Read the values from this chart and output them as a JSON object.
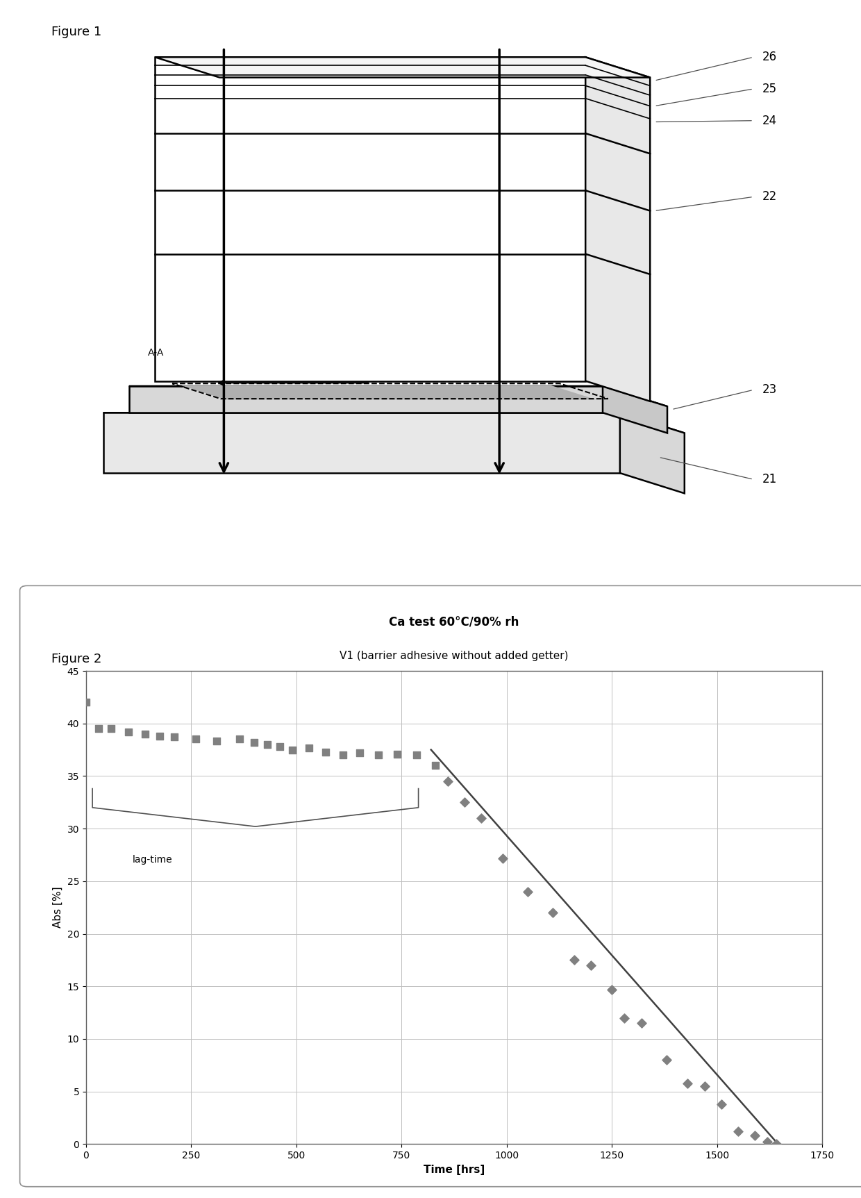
{
  "fig1_label": "Figure 1",
  "fig2_label": "Figure 2",
  "labels": {
    "21": "21",
    "22": "22",
    "23": "23",
    "24": "24",
    "25": "25",
    "26": "26",
    "AA": "A-A"
  },
  "plot_title1": "Ca test 60°C/90% rh",
  "plot_title2": "V1 (barrier adhesive without added getter)",
  "xlabel": "Time [hrs]",
  "ylabel": "Abs [%]",
  "xlim": [
    0,
    1750
  ],
  "ylim": [
    0,
    45
  ],
  "xticks": [
    0,
    250,
    500,
    750,
    1000,
    1250,
    1500,
    1750
  ],
  "yticks": [
    0,
    5,
    10,
    15,
    20,
    25,
    30,
    35,
    40,
    45
  ],
  "lag_time_label": "lag-time",
  "scatter_color": "#808080",
  "line_color": "#404040",
  "flat_data_x": [
    0,
    30,
    60,
    100,
    140,
    175,
    210,
    260,
    310,
    365,
    400,
    430,
    460,
    490,
    530,
    570,
    610,
    650,
    695,
    740,
    785,
    830
  ],
  "flat_data_y": [
    42,
    39.5,
    39.5,
    39.2,
    39.0,
    38.8,
    38.7,
    38.5,
    38.3,
    38.5,
    38.2,
    38.0,
    37.8,
    37.5,
    37.7,
    37.3,
    37.0,
    37.2,
    37.0,
    37.1,
    37.0,
    36.0
  ],
  "decline_data_x": [
    860,
    900,
    940,
    990,
    1050,
    1110,
    1160,
    1200,
    1250,
    1280,
    1320,
    1380,
    1430,
    1470,
    1510,
    1550,
    1590,
    1620,
    1640
  ],
  "decline_data_y": [
    34.5,
    32.5,
    31.0,
    27.2,
    24.0,
    22.0,
    17.5,
    17.0,
    14.7,
    12.0,
    11.5,
    8.0,
    5.8,
    5.5,
    3.8,
    1.2,
    0.8,
    0.2,
    0.0
  ],
  "trendline_x": [
    820,
    1645
  ],
  "trendline_y": [
    37.5,
    0.0
  ],
  "bg_color": "#ffffff",
  "plot_bg": "#ffffff",
  "grid_color": "#c0c0c0",
  "marker_size_flat": 55,
  "marker_size_decline": 45
}
